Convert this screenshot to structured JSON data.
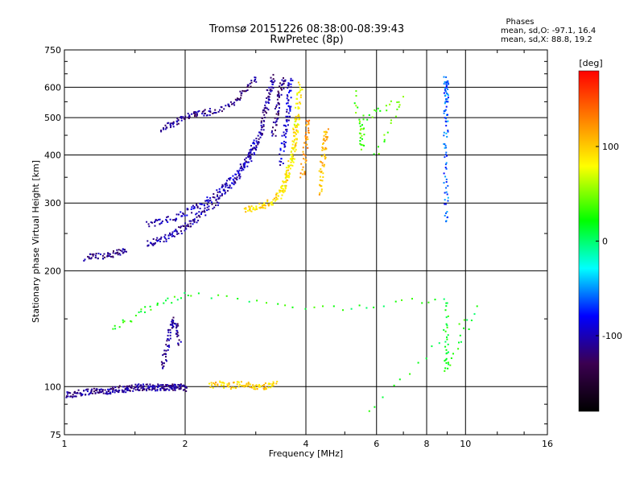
{
  "chart_data": {
    "type": "scatter",
    "title": "Tromsø 20151226 08:38:00-08:39:43",
    "subtitle": "RwPretec (8p)",
    "xlabel": "Frequency [MHz]",
    "ylabel": "Stationary phase Virtual Height [km]",
    "xscale": "log",
    "yscale": "log",
    "xlim": [
      1,
      16
    ],
    "ylim": [
      75,
      750
    ],
    "xticks": [
      1,
      2,
      4,
      6,
      8,
      10,
      16
    ],
    "yticks": [
      75,
      100,
      200,
      300,
      400,
      500,
      600,
      750
    ],
    "grid": true,
    "phase_box": {
      "heading": "Phases",
      "line_o": "mean, sd,O: -97.1, 16.4",
      "line_x": "mean, sd,X: 88.8, 19.2"
    },
    "colorbar": {
      "label": "[deg]",
      "min": -180,
      "max": 180,
      "ticks": [
        -100,
        0,
        100
      ],
      "colormap": "rainbow",
      "colors": [
        "#000000",
        "#3b0050",
        "#0000ff",
        "#00ffff",
        "#00ff00",
        "#ffff00",
        "#ff8000",
        "#ff0000"
      ]
    },
    "traces": [
      {
        "x": [
          1.0,
          1.05,
          1.1,
          1.15,
          1.2,
          1.25,
          1.3,
          1.35,
          1.4,
          1.45,
          1.5,
          1.55,
          1.6,
          1.65,
          1.7,
          1.75,
          1.8,
          1.85,
          1.9,
          1.95,
          2.0
        ],
        "y": [
          96,
          96,
          97,
          97,
          98,
          98,
          98,
          99,
          99,
          99,
          100,
          100,
          100,
          100,
          100,
          100,
          100,
          100,
          100,
          100,
          99
        ],
        "phase": -110
      },
      {
        "x": [
          1.12,
          1.2,
          1.28,
          1.35,
          1.42
        ],
        "y": [
          217,
          219,
          221,
          224,
          226
        ],
        "phase": -115
      },
      {
        "x": [
          1.6,
          1.7,
          1.8,
          1.9,
          2.0,
          2.1,
          2.2,
          2.35,
          2.5,
          2.65,
          2.8,
          2.95,
          3.05
        ],
        "y": [
          236,
          240,
          246,
          253,
          262,
          272,
          283,
          300,
          320,
          345,
          375,
          410,
          440
        ],
        "phase": -105
      },
      {
        "x": [
          1.6,
          1.75,
          1.9,
          2.05,
          2.2,
          2.35,
          2.5,
          2.65,
          2.8,
          2.9,
          3.0
        ],
        "y": [
          265,
          270,
          278,
          288,
          300,
          315,
          333,
          355,
          383,
          410,
          440
        ],
        "phase": -100
      },
      {
        "x": [
          3.05,
          3.1,
          3.15,
          3.2,
          3.25,
          3.3
        ],
        "y": [
          440,
          480,
          520,
          560,
          600,
          640
        ],
        "phase": -110
      },
      {
        "x": [
          3.3,
          3.35,
          3.4,
          3.45,
          3.5
        ],
        "y": [
          450,
          500,
          550,
          600,
          640
        ],
        "phase": -115
      },
      {
        "x": [
          3.45,
          3.5,
          3.55,
          3.6,
          3.62,
          3.65
        ],
        "y": [
          380,
          430,
          480,
          530,
          580,
          640
        ],
        "phase": -95
      },
      {
        "x": [
          1.75,
          1.85,
          1.95,
          2.05,
          2.15,
          2.3,
          2.5,
          2.7,
          2.85,
          3.0
        ],
        "y": [
          470,
          485,
          500,
          510,
          515,
          520,
          535,
          560,
          600,
          640
        ],
        "phase": -115
      },
      {
        "x": [
          2.8,
          2.95,
          3.1,
          3.25,
          3.4,
          3.5,
          3.6,
          3.7,
          3.75,
          3.8
        ],
        "y": [
          290,
          292,
          296,
          302,
          312,
          330,
          360,
          400,
          450,
          500
        ],
        "phase": 95
      },
      {
        "x": [
          3.45,
          3.55,
          3.65,
          3.72,
          3.78,
          3.82,
          3.86
        ],
        "y": [
          320,
          350,
          390,
          440,
          500,
          560,
          620
        ],
        "phase": 85
      },
      {
        "x": [
          3.9,
          3.95,
          4.0,
          4.05
        ],
        "y": [
          350,
          400,
          450,
          500
        ],
        "phase": 120
      },
      {
        "x": [
          4.3,
          4.35,
          4.4,
          4.45,
          4.5
        ],
        "y": [
          320,
          360,
          400,
          440,
          470
        ],
        "phase": 110
      },
      {
        "x": [
          2.3,
          2.45,
          2.6,
          2.75,
          2.9,
          3.05,
          3.2,
          3.35
        ],
        "y": [
          101,
          102,
          101,
          102,
          101,
          100,
          101,
          102
        ],
        "phase": 100
      },
      {
        "x": [
          1.75,
          1.78,
          1.82,
          1.86,
          1.9,
          1.94
        ],
        "y": [
          112,
          124,
          138,
          150,
          142,
          128
        ],
        "phase": -110
      },
      {
        "x": [
          8.9,
          8.9,
          8.9,
          8.9,
          8.9,
          8.9,
          8.9
        ],
        "y": [
          270,
          330,
          420,
          500,
          560,
          600,
          640
        ],
        "phase": -60
      },
      {
        "x": [
          5.3,
          5.5,
          5.5,
          6.9,
          5.9
        ],
        "y": [
          580,
          420,
          500,
          560,
          390
        ],
        "phase": 40
      },
      {
        "x": [
          1.3,
          1.6,
          2.05,
          4.4,
          8.9,
          8.9,
          8.9,
          10.5,
          5.4
        ],
        "y": [
          140,
          160,
          175,
          160,
          170,
          130,
          110,
          160,
          82
        ],
        "phase": 20
      }
    ]
  }
}
